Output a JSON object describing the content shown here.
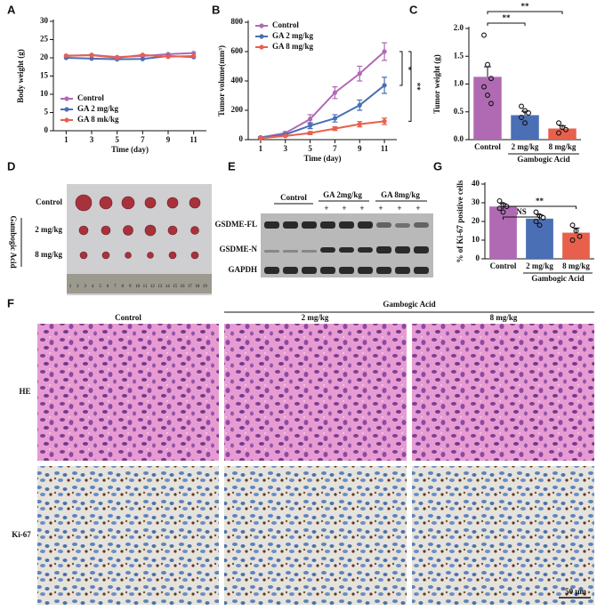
{
  "chart_data": [
    {
      "panel": "A",
      "type": "line",
      "x_label": "Time (day)",
      "y_label": "Body weight (g)",
      "x": [
        1,
        3,
        5,
        7,
        9,
        11
      ],
      "xlim": [
        0,
        12
      ],
      "xticks": [
        1,
        3,
        5,
        7,
        9,
        11
      ],
      "ylim": [
        0,
        30
      ],
      "yticks": [
        0,
        5,
        10,
        15,
        20,
        25,
        30
      ],
      "legend": "lower left",
      "series": [
        {
          "name": "Control",
          "color": "#b06ab3",
          "values": [
            20.5,
            20.8,
            20.2,
            20.5,
            21.0,
            21.3
          ]
        },
        {
          "name": "GA 2 mg/kg",
          "color": "#4a6fb5",
          "values": [
            20.0,
            19.8,
            19.6,
            19.7,
            20.5,
            20.2
          ]
        },
        {
          "name": "GA 8 mk/kg",
          "color": "#e8604c",
          "values": [
            20.6,
            20.7,
            20.0,
            20.8,
            20.3,
            20.5
          ]
        }
      ]
    },
    {
      "panel": "B",
      "type": "line",
      "x_label": "Time (day)",
      "y_label": "Tumor volume(mm³)",
      "x": [
        1,
        3,
        5,
        7,
        9,
        11
      ],
      "xlim": [
        0,
        12
      ],
      "xticks": [
        1,
        3,
        5,
        7,
        9,
        11
      ],
      "ylim": [
        0,
        800
      ],
      "yticks": [
        0,
        200,
        400,
        600,
        800
      ],
      "legend": "upper left",
      "series": [
        {
          "name": "Control",
          "color": "#b06ab3",
          "values": [
            15,
            45,
            140,
            320,
            450,
            600
          ],
          "errors": [
            5,
            10,
            30,
            40,
            50,
            60
          ]
        },
        {
          "name": "GA 2 mg/kg",
          "color": "#4a6fb5",
          "values": [
            12,
            35,
            95,
            145,
            235,
            370
          ],
          "errors": [
            5,
            8,
            20,
            25,
            35,
            55
          ]
        },
        {
          "name": "GA 8 mg/kg",
          "color": "#e8604c",
          "values": [
            10,
            25,
            45,
            75,
            105,
            125
          ],
          "errors": [
            3,
            5,
            10,
            12,
            18,
            22
          ]
        }
      ],
      "annotations": [
        "*",
        "**"
      ]
    },
    {
      "panel": "C",
      "type": "bar",
      "y_label": "Tumor weight (g)",
      "categories": [
        "Control",
        "2 mg/kg",
        "8 mg/kg"
      ],
      "group_label": "Gambogic Acid",
      "values": [
        1.13,
        0.44,
        0.2
      ],
      "errors": [
        0.18,
        0.07,
        0.05
      ],
      "colors": [
        "#b06ab3",
        "#4a6fb5",
        "#e8604c"
      ],
      "points": [
        [
          1.88,
          1.35,
          1.1,
          0.95,
          0.8,
          0.65
        ],
        [
          0.6,
          0.52,
          0.48,
          0.4,
          0.3
        ],
        [
          0.3,
          0.22,
          0.18,
          0.12
        ]
      ],
      "ylim": [
        0,
        2
      ],
      "yticks": [
        {
          "value": 0,
          "label": "0.0"
        },
        {
          "value": 0.5,
          "label": "0.5"
        },
        {
          "value": 1,
          "label": "1.0"
        },
        {
          "value": 1.5,
          "label": "1.5"
        },
        {
          "value": 2,
          "label": "2.0"
        }
      ],
      "annotations": [
        "**",
        "**"
      ]
    },
    {
      "panel": "G",
      "type": "bar",
      "y_label": "% of Ki-67 positive cells",
      "categories": [
        "Control",
        "2 mg/kg",
        "8 mg/kg"
      ],
      "group_label": "Gambogic Acid",
      "values": [
        28,
        21.5,
        14
      ],
      "errors": [
        1.5,
        2,
        2.5
      ],
      "colors": [
        "#b06ab3",
        "#4a6fb5",
        "#e8604c"
      ],
      "points": [
        [
          31,
          29,
          28,
          27,
          25
        ],
        [
          25,
          23,
          22,
          20,
          18
        ],
        [
          18,
          15,
          12,
          10
        ]
      ],
      "ylim": [
        0,
        40
      ],
      "yticks": [
        0,
        10,
        20,
        30,
        40
      ],
      "annotations": [
        "NS",
        "**"
      ]
    }
  ],
  "panel_d": {
    "panel": "D",
    "rows": [
      "Control",
      "2 mg/kg",
      "8 mg/kg"
    ],
    "group_label": "Gambogic Acid",
    "ruler": [
      1,
      2,
      3,
      4,
      5,
      6,
      7,
      8,
      9,
      10,
      11,
      12,
      13,
      14,
      15,
      16,
      17,
      18,
      19
    ]
  },
  "panel_e": {
    "panel": "E",
    "groups": [
      "Control",
      "GA 2mg/kg",
      "GA 8mg/kg"
    ],
    "treated_marks": [
      "+",
      "+",
      "+",
      "+",
      "+",
      "+"
    ],
    "bands": [
      "GSDME-FL",
      "GSDME-N",
      "GAPDH"
    ]
  },
  "panel_f": {
    "panel": "F",
    "columns": [
      "Control",
      "2 mg/kg",
      "8 mg/kg"
    ],
    "group_label": "Gambogic Acid",
    "rows": [
      "HE",
      "Ki-67"
    ],
    "scale_bar": "50 μm"
  }
}
